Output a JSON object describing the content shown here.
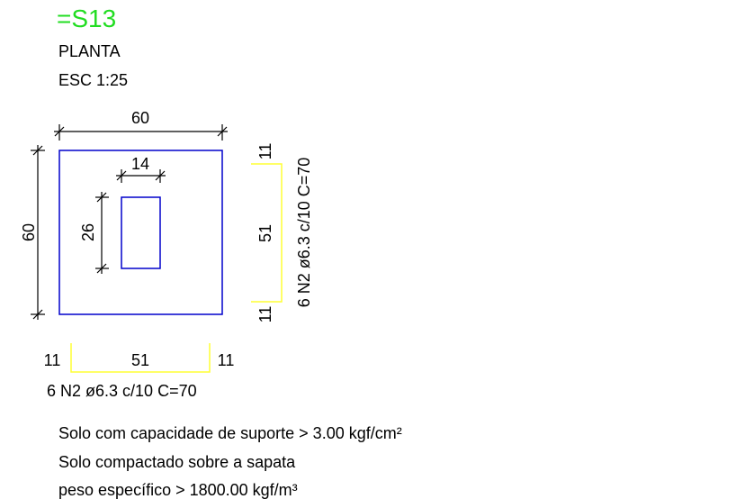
{
  "title": "=S13",
  "view": "PLANTA",
  "scale": "ESC 1:25",
  "dimensions": {
    "footing_width": "60",
    "footing_height": "60",
    "pillar_width": "14",
    "pillar_height": "26"
  },
  "rebar_bottom": {
    "left_hook": "11",
    "span": "51",
    "right_hook": "11",
    "label": "6 N2 ø6.3 c/10 C=70"
  },
  "rebar_right": {
    "top_hook": "11",
    "span": "51",
    "bottom_hook": "11",
    "label": "6 N2 ø6.3 c/10 C=70"
  },
  "notes": [
    "Solo com capacidade de suporte > 3.00 kgf/cm²",
    "Solo compactado sobre a sapata",
    "peso específico > 1800.00 kgf/m³"
  ],
  "colors": {
    "title": "#22dd22",
    "outline": "#0000cc",
    "rebar": "#ffff33",
    "dimension": "#000000"
  }
}
